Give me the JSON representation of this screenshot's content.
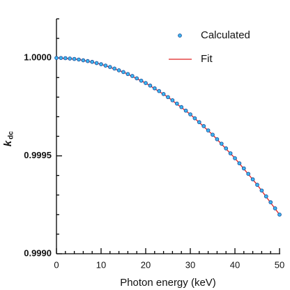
{
  "chart_data": {
    "type": "scatter",
    "x_label": "Photon energy (keV)",
    "y_label": "k",
    "y_label_sub": "dc",
    "xlim": [
      0,
      50
    ],
    "xticks": [
      0,
      10,
      20,
      30,
      40,
      50
    ],
    "xminorticks": [
      2,
      4,
      6,
      8,
      12,
      14,
      16,
      18,
      22,
      24,
      26,
      28,
      32,
      34,
      36,
      38,
      42,
      44,
      46,
      48
    ],
    "ylim": [
      0.999,
      1.0002
    ],
    "yticks": [
      {
        "value": 0.999,
        "label": "0.9990"
      },
      0.9995,
      {
        "value": 1,
        "label": "1.0000"
      }
    ],
    "yminorticks": [
      0.9991,
      0.9992,
      0.9993,
      0.9994,
      0.9996,
      0.9997,
      0.9998,
      0.9999,
      1.0001,
      1.0002
    ],
    "legend": "upper right",
    "series": [
      {
        "name": "Calculated",
        "marker": "circle",
        "color": "#3fb6f0",
        "edgecolor": "#1c4f9c",
        "x": [
          0,
          1,
          2,
          3,
          4,
          5,
          6,
          7,
          8,
          9,
          10,
          11,
          12,
          13,
          14,
          15,
          16,
          17,
          18,
          19,
          20,
          21,
          22,
          23,
          24,
          25,
          26,
          27,
          28,
          29,
          30,
          31,
          32,
          33,
          34,
          35,
          36,
          37,
          38,
          39,
          40,
          41,
          42,
          43,
          44,
          45,
          46,
          47,
          48,
          49,
          50
        ],
        "values": [
          1,
          1,
          0.999999,
          0.999997,
          0.999995,
          0.999992,
          0.999988,
          0.999984,
          0.99998,
          0.999974,
          0.999968,
          0.999961,
          0.999954,
          0.999946,
          0.999937,
          0.999928,
          0.999918,
          0.999908,
          0.999896,
          0.999884,
          0.999872,
          0.999859,
          0.999845,
          0.999831,
          0.999816,
          0.9998,
          0.999784,
          0.999767,
          0.999749,
          0.999731,
          0.999712,
          0.999692,
          0.999672,
          0.999652,
          0.99963,
          0.999608,
          0.999585,
          0.999562,
          0.999538,
          0.999513,
          0.999488,
          0.999462,
          0.999436,
          0.999408,
          0.99938,
          0.999352,
          0.999323,
          0.999293,
          0.999263,
          0.999232,
          0.9992
        ]
      },
      {
        "name": "Fit",
        "marker": "line",
        "color": "#e02020",
        "x": [
          0,
          5,
          10,
          15,
          20,
          25,
          30,
          35,
          40,
          45,
          50
        ],
        "values": [
          1,
          0.999992,
          0.999968,
          0.999928,
          0.999872,
          0.9998,
          0.999712,
          0.999608,
          0.999488,
          0.999352,
          0.9992
        ]
      }
    ]
  }
}
